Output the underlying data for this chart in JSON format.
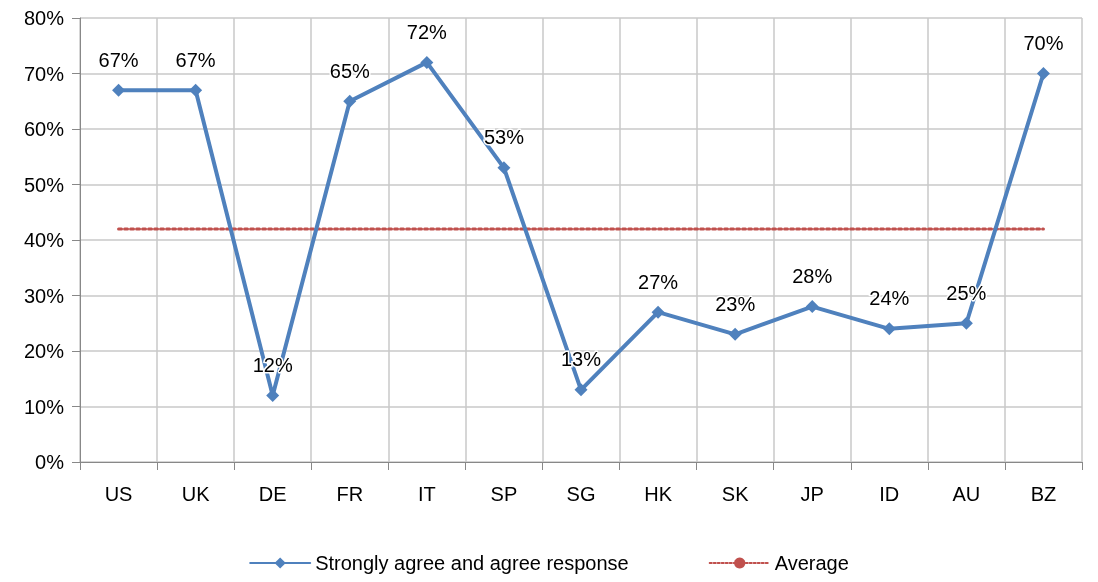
{
  "chart_data": {
    "type": "line",
    "categories": [
      "US",
      "UK",
      "DE",
      "FR",
      "IT",
      "SP",
      "SG",
      "HK",
      "SK",
      "JP",
      "ID",
      "AU",
      "BZ"
    ],
    "series": [
      {
        "name": "Strongly agree and agree response",
        "color": "#4f81bd",
        "marker": "diamond",
        "line_style": "solid",
        "values": [
          67,
          67,
          12,
          65,
          72,
          53,
          13,
          27,
          23,
          28,
          24,
          25,
          70
        ],
        "value_labels": [
          "67%",
          "67%",
          "12%",
          "65%",
          "72%",
          "53%",
          "13%",
          "27%",
          "23%",
          "28%",
          "24%",
          "25%",
          "70%"
        ]
      },
      {
        "name": "Average",
        "color": "#c0504d",
        "marker": "none",
        "line_style": "dotted",
        "values": [
          42,
          42,
          42,
          42,
          42,
          42,
          42,
          42,
          42,
          42,
          42,
          42,
          42
        ]
      }
    ],
    "ylim": [
      0,
      80
    ],
    "yticks": [
      {
        "value": 0,
        "label": "0%"
      },
      {
        "value": 10,
        "label": "10%"
      },
      {
        "value": 20,
        "label": "20%"
      },
      {
        "value": 30,
        "label": "30%"
      },
      {
        "value": 40,
        "label": "40%"
      },
      {
        "value": 50,
        "label": "50%"
      },
      {
        "value": 60,
        "label": "60%"
      },
      {
        "value": 70,
        "label": "70%"
      },
      {
        "value": 80,
        "label": "80%"
      }
    ],
    "grid": true,
    "legend": "bottom"
  }
}
